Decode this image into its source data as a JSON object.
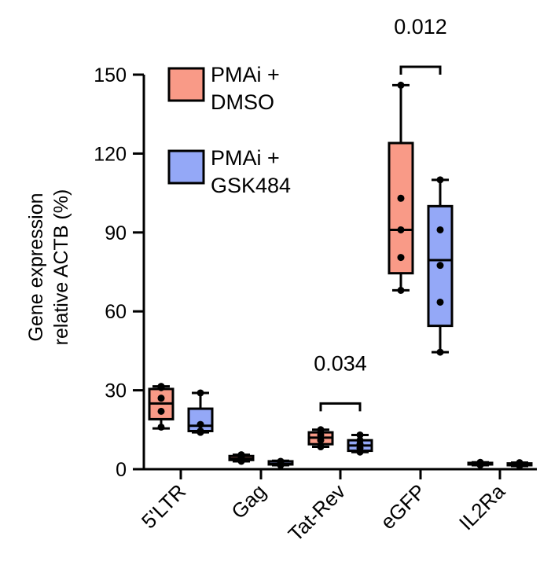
{
  "chart_data": {
    "type": "box",
    "categories": [
      "5'LTR",
      "Gag",
      "Tat-Rev",
      "eGFP",
      "IL2Ra"
    ],
    "ylabel_lines": [
      "Gene expression",
      "relative ACTB (%)"
    ],
    "ylim": [
      0,
      150
    ],
    "yticks": [
      0,
      30,
      60,
      90,
      120,
      150
    ],
    "series": [
      {
        "name_lines": [
          "PMAi +",
          "DMSO"
        ],
        "color": "#f99a87",
        "boxes": [
          {
            "min": 15.5,
            "q1": 19,
            "median": 25,
            "q3": 30.5,
            "max": 31.5,
            "points": [
              16,
              22,
              27,
              31,
              31.5
            ]
          },
          {
            "min": 3,
            "q1": 3.5,
            "median": 4,
            "q3": 5,
            "max": 5.5,
            "points": [
              3,
              4,
              4.5,
              5.5
            ]
          },
          {
            "min": 8.5,
            "q1": 9.5,
            "median": 12,
            "q3": 14,
            "max": 15,
            "points": [
              8.5,
              11,
              13,
              15
            ]
          },
          {
            "min": 68,
            "q1": 74.5,
            "median": 91,
            "q3": 124,
            "max": 146,
            "points": [
              68,
              80.5,
              91,
              103,
              146
            ]
          },
          {
            "min": 1.5,
            "q1": 1.8,
            "median": 2,
            "q3": 2.4,
            "max": 2.6,
            "points": [
              1.6,
              2,
              2.3,
              2.6
            ]
          }
        ]
      },
      {
        "name_lines": [
          "PMAi +",
          "GSK484"
        ],
        "color": "#94a8f7",
        "boxes": [
          {
            "min": 14,
            "q1": 14.5,
            "median": 16.5,
            "q3": 23,
            "max": 29,
            "points": [
              14,
              14.5,
              17,
              29
            ]
          },
          {
            "min": 1.5,
            "q1": 1.8,
            "median": 2,
            "q3": 3,
            "max": 3.2,
            "points": [
              1.5,
              2,
              2.5,
              3
            ]
          },
          {
            "min": 6.5,
            "q1": 7,
            "median": 9,
            "q3": 11,
            "max": 13,
            "points": [
              6.5,
              8,
              9.5,
              11,
              13
            ]
          },
          {
            "min": 44.5,
            "q1": 54.5,
            "median": 79.5,
            "q3": 100,
            "max": 110,
            "points": [
              44.5,
              63.5,
              77.5,
              91,
              110
            ]
          },
          {
            "min": 1.2,
            "q1": 1.5,
            "median": 1.8,
            "q3": 2.2,
            "max": 2.5,
            "points": [
              1.3,
              1.8,
              2.2,
              2.5
            ]
          }
        ]
      }
    ],
    "comparisons": [
      {
        "category_index": 2,
        "label": "0.034",
        "y": 25
      },
      {
        "category_index": 3,
        "label": "0.012",
        "y": 153
      }
    ]
  }
}
